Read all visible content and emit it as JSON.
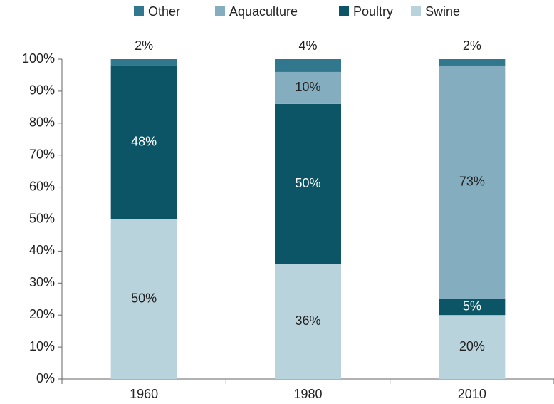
{
  "chart_data": {
    "type": "stacked_bar",
    "categories": [
      "1960",
      "1980",
      "2010"
    ],
    "series": [
      {
        "name": "Swine",
        "color": "#b9d3dc",
        "values": [
          50,
          36,
          20
        ],
        "value_labels": [
          "50%",
          "36%",
          "20%"
        ]
      },
      {
        "name": "Poultry",
        "color": "#0b5566",
        "values": [
          48,
          50,
          5
        ],
        "value_labels": [
          "48%",
          "50%",
          "5%"
        ]
      },
      {
        "name": "Aquaculture",
        "color": "#84aebf",
        "values": [
          0,
          10,
          73
        ],
        "value_labels": [
          null,
          "10%",
          "73%"
        ]
      },
      {
        "name": "Other",
        "color": "#31788f",
        "values": [
          2,
          4,
          2
        ],
        "value_labels": [
          "2%",
          "4%",
          "2%"
        ]
      }
    ],
    "ylim": [
      0,
      100
    ],
    "yticks": [
      {
        "value": 0,
        "label": "0%"
      },
      {
        "value": 10,
        "label": "10%"
      },
      {
        "value": 20,
        "label": "20%"
      },
      {
        "value": 30,
        "label": "30%"
      },
      {
        "value": 40,
        "label": "40%"
      },
      {
        "value": 50,
        "label": "50%"
      },
      {
        "value": 60,
        "label": "60%"
      },
      {
        "value": 70,
        "label": "70%"
      },
      {
        "value": 80,
        "label": "80%"
      },
      {
        "value": 90,
        "label": "90%"
      },
      {
        "value": 100,
        "label": "100%"
      }
    ],
    "grid": false,
    "legend": "top"
  }
}
